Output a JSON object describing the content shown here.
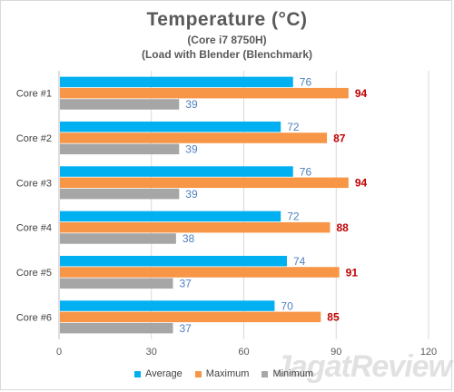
{
  "chart_data": {
    "type": "bar",
    "orientation": "horizontal",
    "title": "Temperature (°C)",
    "subtitle_lines": [
      "(Core i7 8750H)",
      "(Load with Blender (Blenchmark)"
    ],
    "categories": [
      "Core #1",
      "Core #2",
      "Core #3",
      "Core #4",
      "Core #5",
      "Core #6"
    ],
    "series": [
      {
        "name": "Average",
        "color": "#00b0f0",
        "label_color": "#4f81bd",
        "values": [
          76,
          72,
          76,
          72,
          74,
          70
        ]
      },
      {
        "name": "Maximum",
        "color": "#f79646",
        "label_color": "#c00000",
        "values": [
          94,
          87,
          94,
          88,
          91,
          85
        ]
      },
      {
        "name": "Minimum",
        "color": "#a6a6a6",
        "label_color": "#4f81bd",
        "values": [
          39,
          39,
          39,
          38,
          37,
          37
        ]
      }
    ],
    "xlim": [
      0,
      120
    ],
    "xticks": [
      0,
      30,
      60,
      90,
      120
    ],
    "grid": true,
    "legend_position": "bottom"
  },
  "watermark": "JagatReview"
}
